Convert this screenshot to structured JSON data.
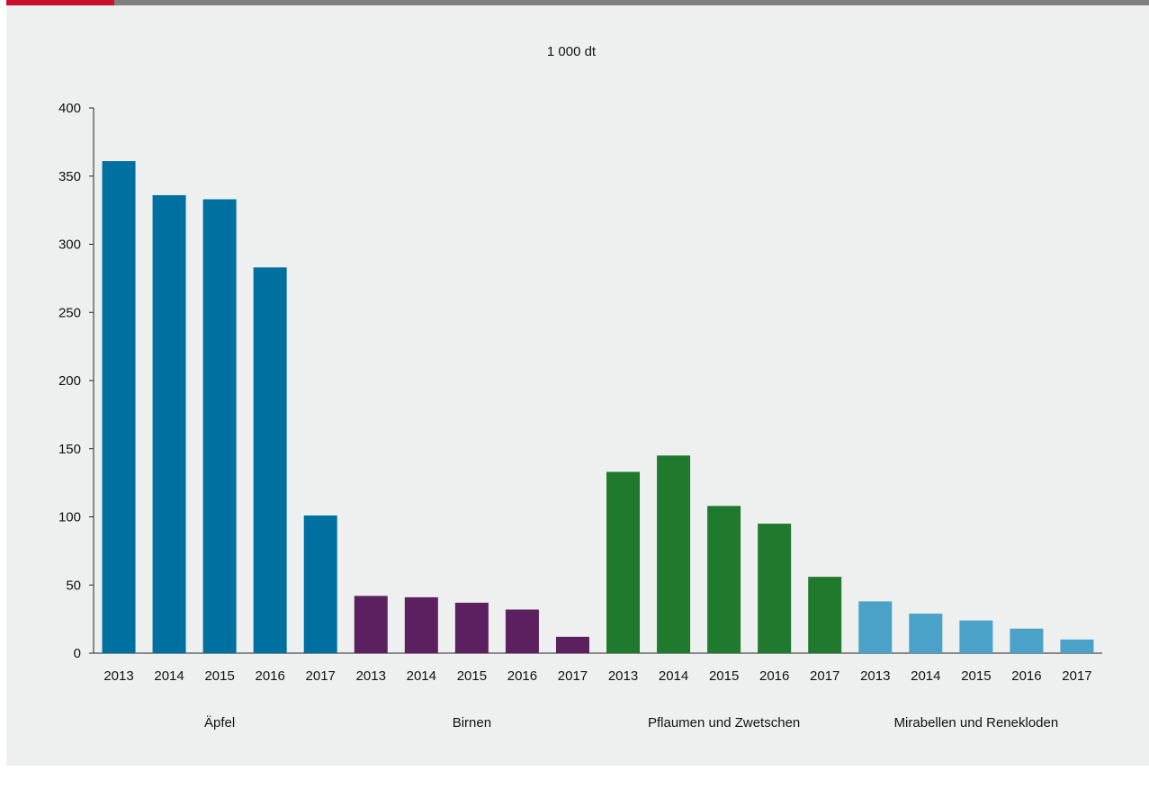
{
  "chart_data": {
    "type": "bar",
    "unit_label": "1 000 dt",
    "yticks": [
      0,
      50,
      100,
      150,
      200,
      250,
      300,
      350,
      400
    ],
    "ylim": [
      0,
      400
    ],
    "grid": false,
    "groups": [
      {
        "name": "Äpfel",
        "color": "#0070a0",
        "categories": [
          "2013",
          "2014",
          "2015",
          "2016",
          "2017"
        ],
        "values": [
          361,
          336,
          333,
          283,
          101
        ]
      },
      {
        "name": "Birnen",
        "color": "#5c2060",
        "categories": [
          "2013",
          "2014",
          "2015",
          "2016",
          "2017"
        ],
        "values": [
          42,
          41,
          37,
          32,
          12
        ]
      },
      {
        "name": "Pflaumen und Zwetschen",
        "color": "#1f7a2e",
        "categories": [
          "2013",
          "2014",
          "2015",
          "2016",
          "2017"
        ],
        "values": [
          133,
          145,
          108,
          95,
          56
        ]
      },
      {
        "name": "Mirabellen und Renekloden",
        "color": "#4aa2c8",
        "categories": [
          "2013",
          "2014",
          "2015",
          "2016",
          "2017"
        ],
        "values": [
          38,
          29,
          24,
          18,
          10
        ]
      }
    ]
  }
}
